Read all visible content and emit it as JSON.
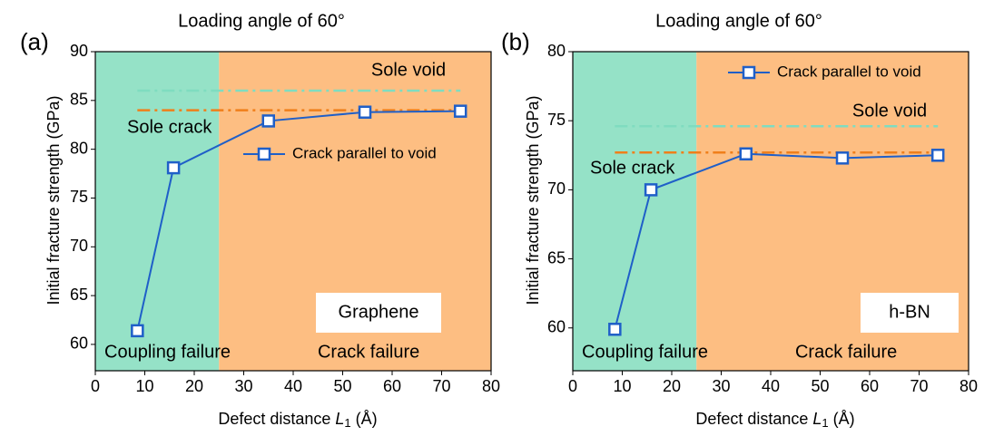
{
  "chart_data": [
    {
      "type": "line",
      "title": "Loading angle of 60°",
      "panel_label": "(a)",
      "y_label": "Initial fracture strength (GPa)",
      "x_label": [
        "Defect distance",
        "L",
        "1",
        "(Å)"
      ],
      "xlim": [
        0,
        80
      ],
      "xticks": [
        0,
        10,
        20,
        30,
        40,
        50,
        60,
        70,
        80
      ],
      "ylim": [
        57.3,
        90
      ],
      "yticks": [
        60,
        65,
        70,
        75,
        80,
        85,
        90
      ],
      "regions": [
        {
          "name": "Coupling failure",
          "xlim": [
            0,
            25
          ],
          "color": "#95e2c7"
        },
        {
          "name": "Crack failure",
          "xlim": [
            25,
            80
          ],
          "color": "#fdbe82"
        }
      ],
      "reference_lines": [
        {
          "name": "Sole void",
          "value": 86,
          "color": "#7fdcc0"
        },
        {
          "name": "Sole crack",
          "value": 84,
          "color": "#f07f1a"
        }
      ],
      "series": [
        {
          "name": "Crack parallel to void",
          "color": "#1f5fc8",
          "x": [
            8.5,
            15.8,
            35,
            54.5,
            73.8
          ],
          "values": [
            61.4,
            78.1,
            82.9,
            83.8,
            83.9
          ]
        }
      ],
      "material": "Graphene",
      "material_color": "#7030a0",
      "legend": "center right"
    },
    {
      "type": "line",
      "title": "Loading angle of 60°",
      "panel_label": "(b)",
      "y_label": "Initial fracture strength (GPa)",
      "x_label": [
        "Defect distance",
        "L",
        "1",
        "(Å)"
      ],
      "xlim": [
        0,
        80
      ],
      "xticks": [
        0,
        10,
        20,
        30,
        40,
        50,
        60,
        70,
        80
      ],
      "ylim": [
        56.9,
        80
      ],
      "yticks": [
        60,
        65,
        70,
        75,
        80
      ],
      "regions": [
        {
          "name": "Coupling failure",
          "xlim": [
            0,
            25
          ],
          "color": "#95e2c7"
        },
        {
          "name": "Crack failure",
          "xlim": [
            25,
            80
          ],
          "color": "#fdbe82"
        }
      ],
      "reference_lines": [
        {
          "name": "Sole void",
          "value": 74.6,
          "color": "#7fdcc0"
        },
        {
          "name": "Sole crack",
          "value": 72.7,
          "color": "#f07f1a"
        }
      ],
      "series": [
        {
          "name": "Crack parallel to void",
          "color": "#1f5fc8",
          "x": [
            8.5,
            15.8,
            35,
            54.5,
            73.8
          ],
          "values": [
            59.9,
            70.0,
            72.6,
            72.3,
            72.5
          ]
        }
      ],
      "material": "h-BN",
      "material_color": "#7030a0",
      "legend": "upper right"
    }
  ]
}
